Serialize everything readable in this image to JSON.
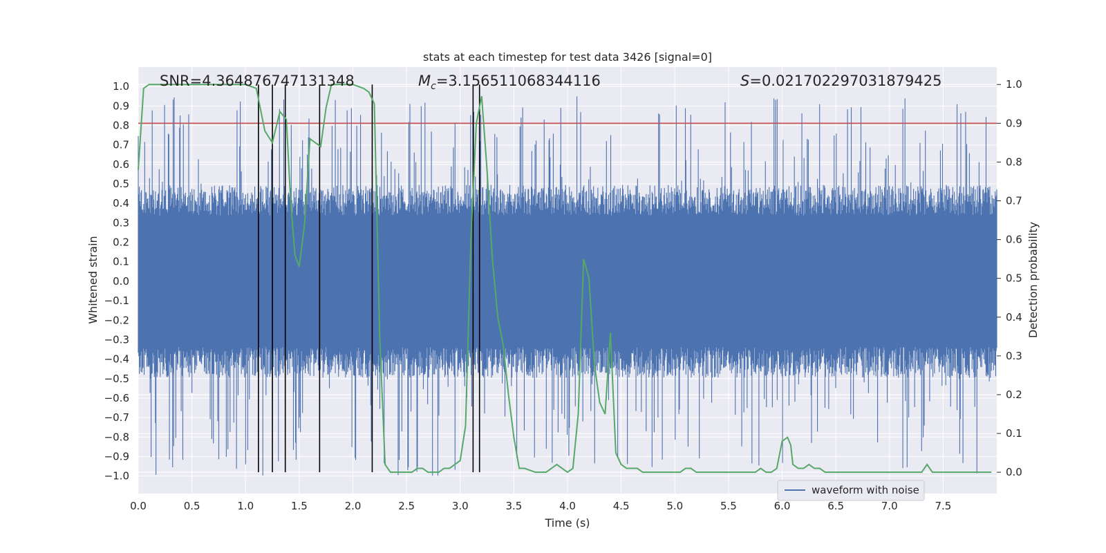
{
  "chart_data": {
    "type": "line",
    "title": "stats at each timestep for test data 3426 [signal=0]",
    "xlabel": "Time (s)",
    "ylabel": "Whitened strain",
    "y2label": "Detection probability",
    "xlim": [
      0.0,
      8.0
    ],
    "ylim": [
      -1.09,
      1.1
    ],
    "y2lim": [
      -0.055,
      1.045
    ],
    "x_ticks": [
      "0.0",
      "0.5",
      "1.0",
      "1.5",
      "2.0",
      "2.5",
      "3.0",
      "3.5",
      "4.0",
      "4.5",
      "5.0",
      "5.5",
      "6.0",
      "6.5",
      "7.0",
      "7.5"
    ],
    "y_ticks": [
      "1.0",
      "0.9",
      "0.8",
      "0.7",
      "0.6",
      "0.5",
      "0.4",
      "0.3",
      "0.2",
      "0.1",
      "0.0",
      "-0.1",
      "-0.2",
      "-0.3",
      "-0.4",
      "-0.5",
      "-0.6",
      "-0.7",
      "-0.8",
      "-0.9",
      "-1.0"
    ],
    "y2_ticks": [
      "1.0",
      "0.9",
      "0.8",
      "0.7",
      "0.6",
      "0.5",
      "0.4",
      "0.3",
      "0.2",
      "0.1",
      "0.0"
    ],
    "annotations": {
      "snr": "SNR=4.364876747131348",
      "mc_symbol": "M",
      "mc_sub": "c",
      "mc_value": "=3.156511068344116",
      "s_symbol": "S",
      "s_value": "=0.021702297031879425"
    },
    "series": [
      {
        "name": "waveform with noise",
        "color": "#4c72b0",
        "axis": "left",
        "style": "dense noise band",
        "envelope_typical": [
          -0.45,
          0.45
        ],
        "envelope_peaks": [
          -1.0,
          0.95
        ]
      },
      {
        "name": "",
        "color": "#55a868",
        "axis": "right",
        "x": [
          0.0,
          0.05,
          0.1,
          0.2,
          0.4,
          0.6,
          0.8,
          1.0,
          1.1,
          1.18,
          1.25,
          1.32,
          1.38,
          1.42,
          1.46,
          1.5,
          1.55,
          1.6,
          1.65,
          1.7,
          1.75,
          1.8,
          1.9,
          2.0,
          2.1,
          2.15,
          2.2,
          2.25,
          2.3,
          2.35,
          2.4,
          2.5,
          2.55,
          2.6,
          2.65,
          2.7,
          2.75,
          2.8,
          2.85,
          2.9,
          2.95,
          3.0,
          3.05,
          3.1,
          3.15,
          3.2,
          3.25,
          3.3,
          3.35,
          3.4,
          3.45,
          3.5,
          3.55,
          3.6,
          3.7,
          3.75,
          3.8,
          3.85,
          3.9,
          3.95,
          4.0,
          4.05,
          4.1,
          4.15,
          4.2,
          4.25,
          4.3,
          4.35,
          4.4,
          4.45,
          4.5,
          4.55,
          4.6,
          4.65,
          4.7,
          4.8,
          4.9,
          5.0,
          5.05,
          5.1,
          5.15,
          5.2,
          5.3,
          5.4,
          5.5,
          5.6,
          5.7,
          5.75,
          5.8,
          5.85,
          5.9,
          5.95,
          6.0,
          6.05,
          6.08,
          6.1,
          6.15,
          6.2,
          6.25,
          6.3,
          6.35,
          6.4,
          6.5,
          6.6,
          6.8,
          7.0,
          7.1,
          7.15,
          7.2,
          7.25,
          7.3,
          7.35,
          7.4,
          7.5,
          7.6,
          7.7,
          7.8,
          7.9,
          7.95
        ],
        "y": [
          0.78,
          0.99,
          1.0,
          1.0,
          1.0,
          1.0,
          1.0,
          1.0,
          0.99,
          0.88,
          0.85,
          0.93,
          0.91,
          0.7,
          0.56,
          0.53,
          0.64,
          0.86,
          0.85,
          0.84,
          0.94,
          1.0,
          1.0,
          1.0,
          0.99,
          0.98,
          0.95,
          0.35,
          0.02,
          0.0,
          0.0,
          0.0,
          0.0,
          0.01,
          0.01,
          0.0,
          0.0,
          0.0,
          0.01,
          0.01,
          0.02,
          0.03,
          0.12,
          0.6,
          0.9,
          0.97,
          0.78,
          0.55,
          0.4,
          0.33,
          0.2,
          0.09,
          0.01,
          0.01,
          0.0,
          0.0,
          0.0,
          0.01,
          0.02,
          0.01,
          0.0,
          0.01,
          0.15,
          0.55,
          0.5,
          0.28,
          0.18,
          0.15,
          0.36,
          0.05,
          0.02,
          0.01,
          0.01,
          0.01,
          0.0,
          0.0,
          0.0,
          0.0,
          0.0,
          0.01,
          0.01,
          0.0,
          0.0,
          0.0,
          0.0,
          0.0,
          0.0,
          0.0,
          0.01,
          0.0,
          0.0,
          0.01,
          0.08,
          0.09,
          0.07,
          0.02,
          0.01,
          0.01,
          0.02,
          0.01,
          0.01,
          0.0,
          0.0,
          0.0,
          0.0,
          0.0,
          0.0,
          0.0,
          0.0,
          0.0,
          0.0,
          0.02,
          0.0,
          0.0,
          0.0,
          0.0,
          0.0,
          0.0,
          0.0
        ]
      }
    ],
    "threshold": {
      "value": 0.9,
      "axis": "right",
      "color": "#c44e52"
    },
    "vlines": [
      1.12,
      1.25,
      1.37,
      1.69,
      2.18,
      3.12,
      3.18
    ],
    "grid": true,
    "legend": "bottom-center",
    "colors": {
      "plot_bg": "#eaeaf2",
      "grid": "#ffffff",
      "vline": "#000000"
    }
  }
}
